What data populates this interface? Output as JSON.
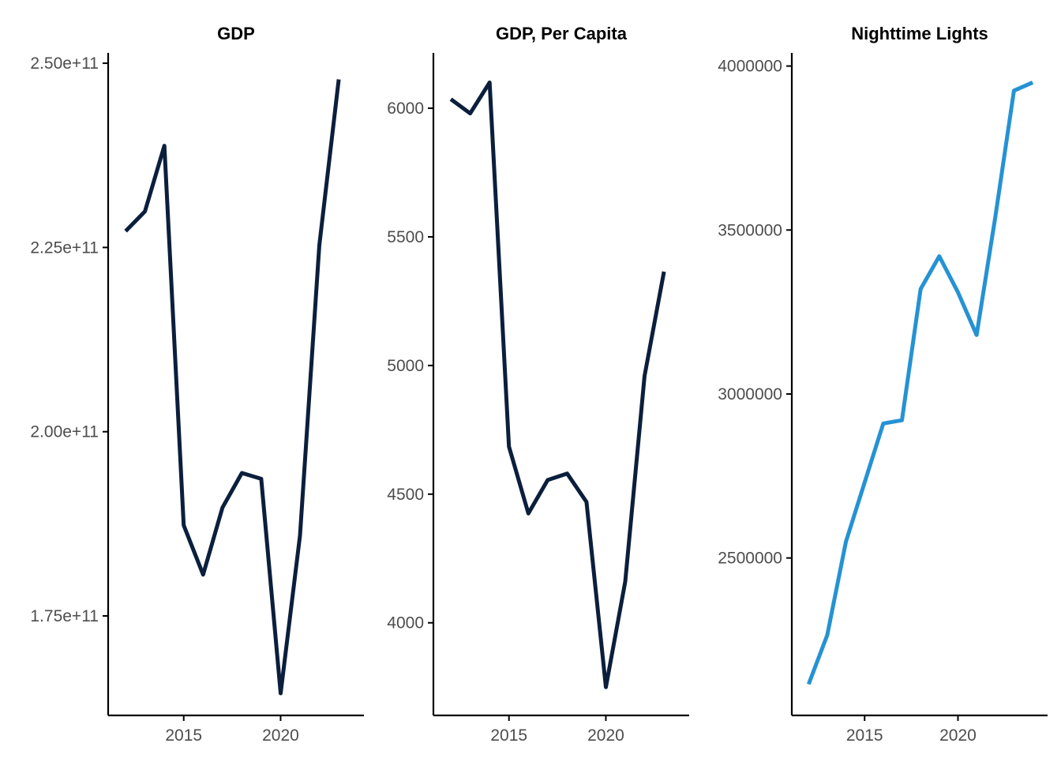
{
  "chart_data": [
    {
      "type": "line",
      "title": "GDP",
      "xlabel": "",
      "ylabel": "",
      "x": [
        2012,
        2013,
        2014,
        2015,
        2016,
        2017,
        2018,
        2019,
        2020,
        2021,
        2022,
        2023
      ],
      "series": [
        {
          "color": "#0b1f3d",
          "values": [
            227200000000,
            229900000000,
            238800000000,
            187300000000,
            180600000000,
            189700000000,
            194400000000,
            193600000000,
            164500000000,
            185900000000,
            225300000000,
            247800000000
          ]
        }
      ],
      "xlim": [
        2011.1,
        2024.3
      ],
      "ylim": [
        161500000000,
        251400000000
      ],
      "x_ticks": [
        2015,
        2020
      ],
      "x_tick_labels": [
        "2015",
        "2020"
      ],
      "y_ticks": [
        175000000000,
        200000000000,
        225000000000,
        250000000000
      ],
      "y_tick_labels": [
        "1.75e+11",
        "2.00e+11",
        "2.25e+11",
        "2.50e+11"
      ],
      "grid": false,
      "legend": "none"
    },
    {
      "type": "line",
      "title": "GDP, Per Capita",
      "xlabel": "",
      "ylabel": "",
      "x": [
        2012,
        2013,
        2014,
        2015,
        2016,
        2017,
        2018,
        2019,
        2020,
        2021,
        2022,
        2023
      ],
      "series": [
        {
          "color": "#0b1f3d",
          "values": [
            6035,
            5980,
            6100,
            4685,
            4425,
            4555,
            4580,
            4470,
            3750,
            4160,
            4960,
            5365
          ]
        }
      ],
      "xlim": [
        2011.1,
        2024.3
      ],
      "ylim": [
        3640,
        6215
      ],
      "x_ticks": [
        2015,
        2020
      ],
      "x_tick_labels": [
        "2015",
        "2020"
      ],
      "y_ticks": [
        4000,
        4500,
        5000,
        5500,
        6000
      ],
      "y_tick_labels": [
        "4000",
        "4500",
        "5000",
        "5500",
        "6000"
      ],
      "grid": false,
      "legend": "none"
    },
    {
      "type": "line",
      "title": "Nighttime Lights",
      "xlabel": "",
      "ylabel": "",
      "x": [
        2012,
        2013,
        2014,
        2015,
        2016,
        2017,
        2018,
        2019,
        2020,
        2021,
        2022,
        2023,
        2024
      ],
      "series": [
        {
          "color": "#2592d4",
          "values": [
            2115000,
            2265000,
            2550000,
            2730000,
            2910000,
            2920000,
            3320000,
            3420000,
            3310000,
            3180000,
            3540000,
            3925000,
            3950000
          ]
        }
      ],
      "xlim": [
        2011.1,
        2024.8
      ],
      "ylim": [
        2020000,
        4040000
      ],
      "x_ticks": [
        2015,
        2020
      ],
      "x_tick_labels": [
        "2015",
        "2020"
      ],
      "y_ticks": [
        2500000,
        3000000,
        3500000,
        4000000
      ],
      "y_tick_labels": [
        "2500000",
        "3000000",
        "3500000",
        "4000000"
      ],
      "grid": false,
      "legend": "none"
    }
  ]
}
